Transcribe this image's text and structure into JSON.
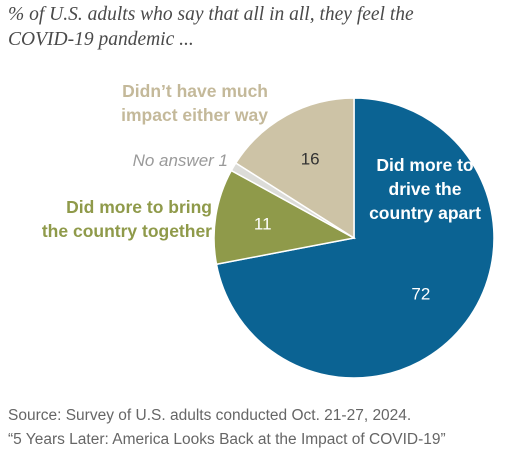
{
  "subtitle": [
    "% of U.S. adults who say that all in all, they feel the",
    "COVID-19 pandemic ..."
  ],
  "chart_data": {
    "type": "pie",
    "title": "% of U.S. adults who say that all in all, they feel the COVID-19 pandemic ...",
    "slices": [
      {
        "label": [
          "Did more to",
          "drive the",
          "country apart"
        ],
        "value": 72,
        "value_label": "72",
        "color": "#0b6393",
        "label_color": "#ffffff"
      },
      {
        "label": [
          "Did more to bring",
          "the country together"
        ],
        "value": 11,
        "value_label": "11",
        "color": "#8f9a4a",
        "label_color": "#8f9a4a"
      },
      {
        "label": [
          "No answer 1"
        ],
        "value": 1,
        "value_label": "",
        "color": "#dcdcd8",
        "label_color": "#9a9a9a"
      },
      {
        "label": [
          "Didn’t have much",
          "impact either way"
        ],
        "value": 16,
        "value_label": "16",
        "color": "#cdc3a6",
        "label_color": "#c4b99a"
      }
    ],
    "value_colors": {
      "on_dark": "#ffffff",
      "on_light": "#333333"
    }
  },
  "source": {
    "line1": "Source: Survey of U.S. adults conducted Oct. 21-27, 2024.",
    "line2": "“5 Years Later: America Looks Back at the Impact of COVID-19”"
  }
}
